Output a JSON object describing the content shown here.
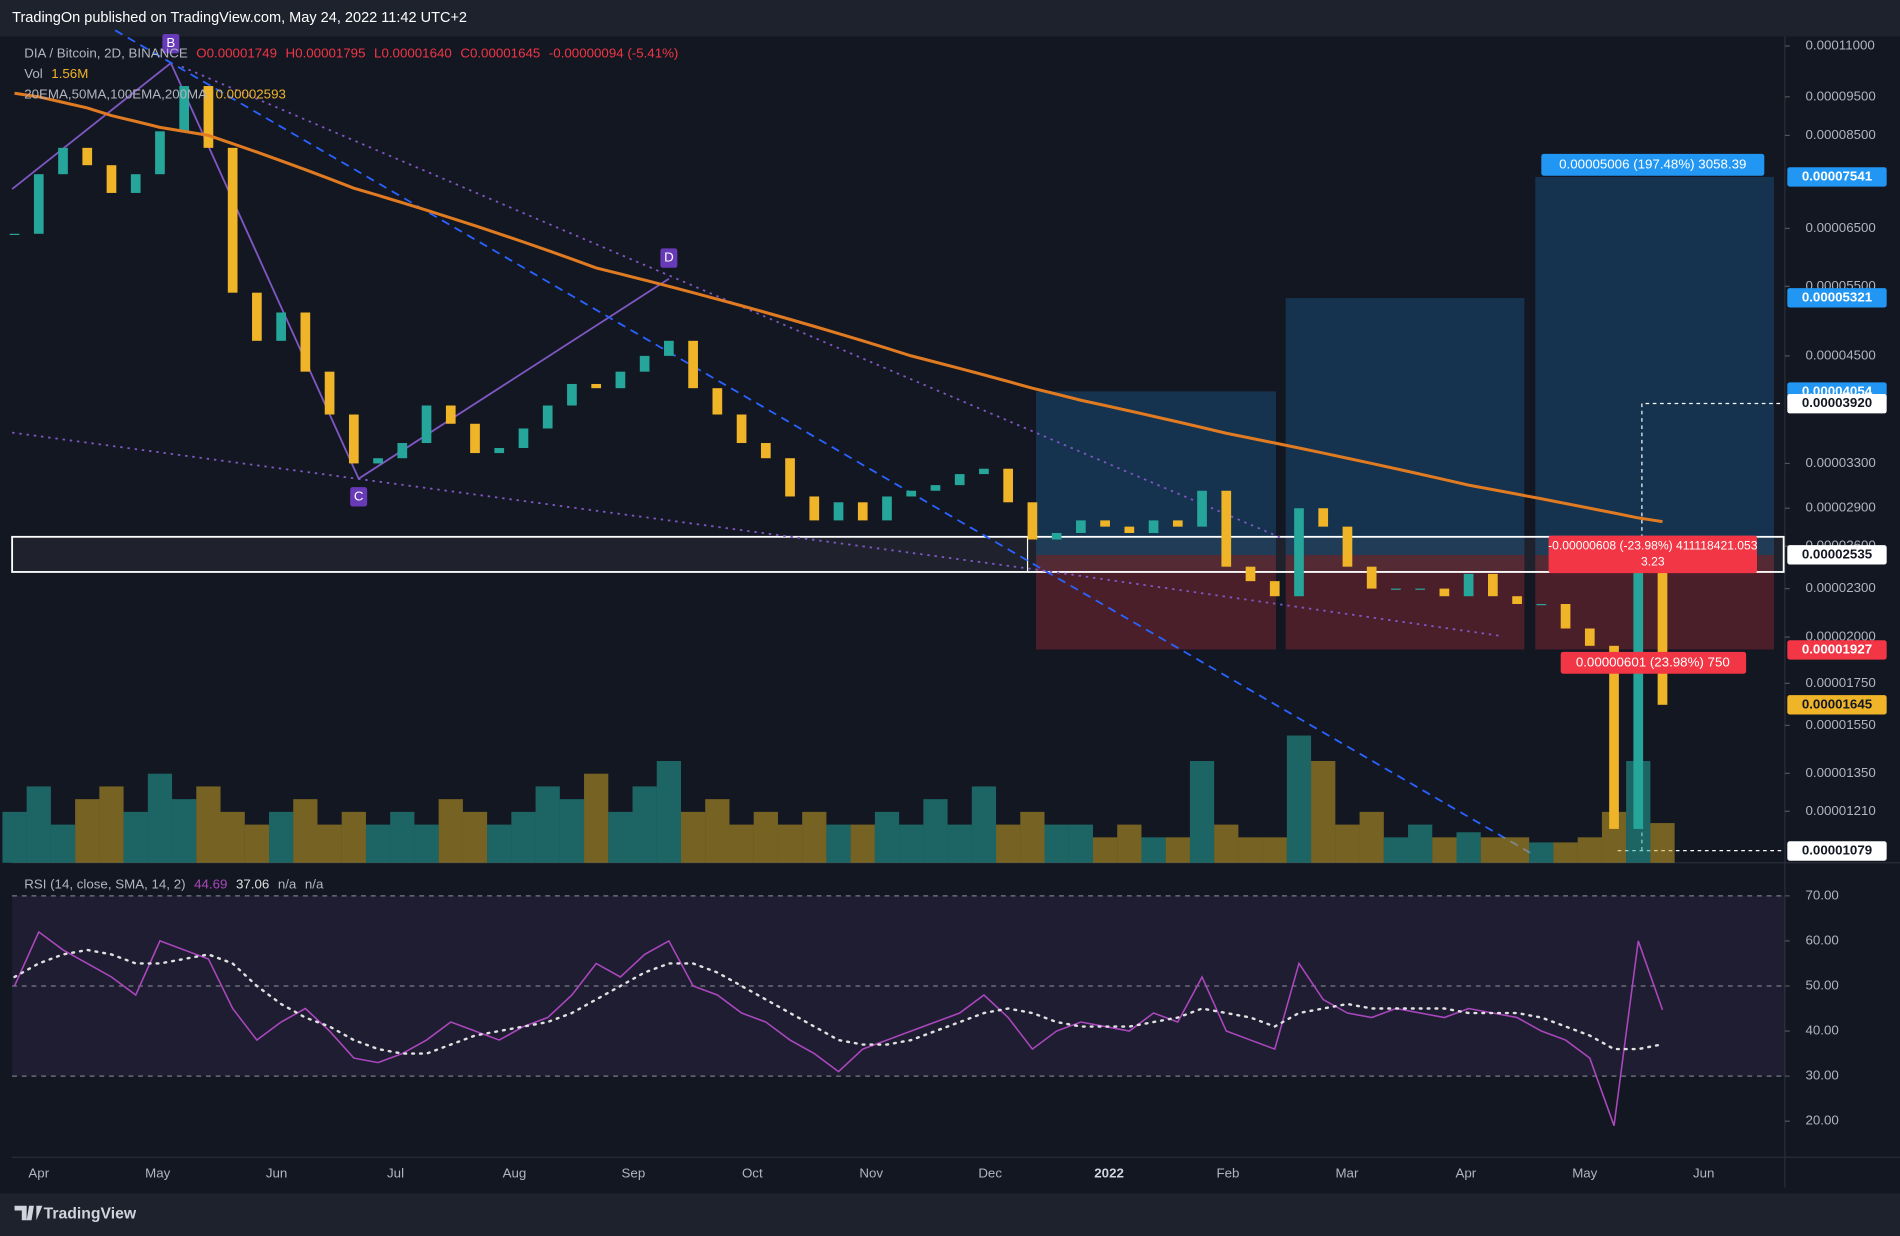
{
  "header": "TradingOn published on TradingView.com, May 24, 2022 11:42 UTC+2",
  "footer": "TradingView",
  "chart_data": [
    {
      "type": "candlestick",
      "title": "DIA / Bitcoin, 2D, BINANCE",
      "ohlc_labels": [
        "O0.00001749",
        "H0.00001795",
        "L0.00001640",
        "C0.00001645",
        "-0.00000094 (-5.41%)"
      ],
      "volume_label": "Vol",
      "volume_value_label": "1.56M",
      "indicator_label": "20EMA,50MA,100EMA,200MA",
      "indicator_value_label": "0.00002593",
      "log_scale": true,
      "ylim": [
        1.043e-05,
        0.0001131
      ],
      "yticks": [
        {
          "value": 0.00011,
          "label": "0.00011000"
        },
        {
          "value": 9.5e-05,
          "label": "0.00009500"
        },
        {
          "value": 8.5e-05,
          "label": "0.00008500"
        },
        {
          "value": 6.5e-05,
          "label": "0.00006500"
        },
        {
          "value": 5.5e-05,
          "label": "0.00005500"
        },
        {
          "value": 4.5e-05,
          "label": "0.00004500"
        },
        {
          "value": 3.3e-05,
          "label": "0.00003300"
        },
        {
          "value": 2.9e-05,
          "label": "0.00002900"
        },
        {
          "value": 2.6e-05,
          "label": "0.00002600"
        },
        {
          "value": 2.3e-05,
          "label": "0.00002300"
        },
        {
          "value": 2e-05,
          "label": "0.00002000"
        },
        {
          "value": 1.75e-05,
          "label": "0.00001750"
        },
        {
          "value": 1.55e-05,
          "label": "0.00001550"
        },
        {
          "value": 1.35e-05,
          "label": "0.00001350"
        },
        {
          "value": 1.21e-05,
          "label": "0.00001210"
        }
      ],
      "x_tick_labels": [
        "Apr",
        "May",
        "Jun",
        "Jul",
        "Aug",
        "Sep",
        "Oct",
        "Nov",
        "Dec",
        "2022",
        "Feb",
        "Mar",
        "Apr",
        "May",
        "Jun"
      ],
      "series": [
        {
          "color_up": "#26a69a",
          "color_down": "#f0b429",
          "values": [
            6.4e-05,
            7.6e-05,
            8.2e-05,
            7.8e-05,
            7.2e-05,
            7.6e-05,
            8.6e-05,
            9.8e-05,
            8.2e-05,
            5.4e-05,
            4.7e-05,
            5.1e-05,
            4.3e-05,
            3.8e-05,
            3.3e-05,
            3.35e-05,
            3.5e-05,
            3.9e-05,
            3.7e-05,
            3.4e-05,
            3.45e-05,
            3.65e-05,
            3.9e-05,
            4.15e-05,
            4.1e-05,
            4.3e-05,
            4.5e-05,
            4.7e-05,
            4.1e-05,
            3.8e-05,
            3.5e-05,
            3.35e-05,
            3e-05,
            2.8e-05,
            2.95e-05,
            2.8e-05,
            3e-05,
            3.05e-05,
            3.1e-05,
            3.2e-05,
            3.25e-05,
            2.95e-05,
            2.65e-05,
            2.7e-05,
            2.8e-05,
            2.75e-05,
            2.7e-05,
            2.8e-05,
            2.75e-05,
            3.05e-05,
            2.45e-05,
            2.35e-05,
            2.25e-05,
            2.9e-05,
            2.75e-05,
            2.45e-05,
            2.3e-05,
            2.3e-05,
            2.3e-05,
            2.25e-05,
            2.4e-05,
            2.25e-05,
            2.2e-05,
            2.2e-05,
            2.05e-05,
            1.95e-05,
            1.15e-05,
            2.6e-05,
            1.645e-05
          ]
        },
        {
          "color": "#e07b22",
          "values": [
            9.6e-05,
            9.5e-05,
            9.35e-05,
            9.2e-05,
            9e-05,
            8.85e-05,
            8.7e-05,
            8.6e-05,
            8.5e-05,
            8.3e-05,
            8.1e-05,
            7.9e-05,
            7.7e-05,
            7.5e-05,
            7.3e-05,
            7.15e-05,
            7e-05,
            6.85e-05,
            6.7e-05,
            6.55e-05,
            6.4e-05,
            6.25e-05,
            6.1e-05,
            5.95e-05,
            5.8e-05,
            5.7e-05,
            5.6e-05,
            5.5e-05,
            5.4e-05,
            5.3e-05,
            5.2e-05,
            5.1e-05,
            5e-05,
            4.9e-05,
            4.8e-05,
            4.7e-05,
            4.6e-05,
            4.5e-05,
            4.42e-05,
            4.34e-05,
            4.26e-05,
            4.18e-05,
            4.1e-05,
            4.03e-05,
            3.96e-05,
            3.9e-05,
            3.84e-05,
            3.78e-05,
            3.72e-05,
            3.66e-05,
            3.6e-05,
            3.55e-05,
            3.5e-05,
            3.45e-05,
            3.4e-05,
            3.35e-05,
            3.3e-05,
            3.25e-05,
            3.2e-05,
            3.15e-05,
            3.1e-05,
            3.06e-05,
            3.02e-05,
            2.98e-05,
            2.94e-05,
            2.9e-05,
            2.86e-05,
            2.82e-05,
            2.79e-05
          ]
        }
      ],
      "volume": {
        "color_up": "#26a69a",
        "color_down": "#c9a227",
        "values": [
          2,
          3,
          1.5,
          2.5,
          3,
          2,
          3.5,
          2.5,
          3,
          2,
          1.5,
          2,
          2.5,
          1.5,
          2,
          1.5,
          2,
          1.5,
          2.5,
          2,
          1.5,
          2,
          3,
          2.5,
          3.5,
          2,
          3,
          4,
          2,
          2.5,
          1.5,
          2,
          1.5,
          2,
          1.5,
          1.5,
          2,
          1.5,
          2.5,
          1.5,
          3,
          1.5,
          2,
          1.5,
          1.5,
          1,
          1.5,
          1,
          1,
          4,
          1.5,
          1,
          1,
          5,
          4,
          1.5,
          2,
          1,
          1.5,
          1,
          1.2,
          1,
          1,
          0.8,
          0.8,
          1,
          2,
          4,
          1.56
        ]
      },
      "price_labels": [
        {
          "value": 7.541e-05,
          "label": "0.00007541",
          "color": "#2196f3"
        },
        {
          "value": 5.321e-05,
          "label": "0.00005321",
          "color": "#2196f3"
        },
        {
          "value": 4.054e-05,
          "label": "0.00004054",
          "color": "#2196f3"
        },
        {
          "value": 3.92e-05,
          "label": "0.00003920",
          "color": "#ffffff"
        },
        {
          "value": 2.535e-05,
          "label": "0.00002535",
          "color": "#ffffff"
        },
        {
          "value": 1.927e-05,
          "label": "0.00001927",
          "color": "#f23645"
        },
        {
          "value": 1.645e-05,
          "label": "0.00001645",
          "color": "#f0b429"
        },
        {
          "value": 1.079e-05,
          "label": "0.00001079",
          "color": "#ffffff"
        }
      ],
      "pattern_labels": [
        "B",
        "C",
        "D"
      ],
      "position_labels": [
        "0.00005006 (197.48%) 3058.39",
        "-0.00000608 (-23.98%) 411118421.053",
        "3.23",
        "0.00000601 (23.98%) 750"
      ]
    },
    {
      "type": "line",
      "title": "RSI (14, close, SMA, 14, 2)",
      "value_labels": [
        "44.69",
        "37.06",
        "n/a",
        "n/a"
      ],
      "ylim": [
        12,
        76
      ],
      "yticks": [
        {
          "value": 70,
          "label": "70.00"
        },
        {
          "value": 60,
          "label": "60.00"
        },
        {
          "value": 50,
          "label": "50.00"
        },
        {
          "value": 40,
          "label": "40.00"
        },
        {
          "value": 30,
          "label": "30.00"
        },
        {
          "value": 20,
          "label": "20.00"
        }
      ],
      "bands": {
        "upper": 70,
        "middle": 50,
        "lower": 30
      },
      "series": [
        {
          "color": "#ab47bc",
          "values": [
            50,
            62,
            58,
            55,
            52,
            48,
            60,
            58,
            56,
            45,
            38,
            42,
            45,
            40,
            34,
            33,
            35,
            38,
            42,
            40,
            38,
            41,
            43,
            48,
            55,
            52,
            57,
            60,
            50,
            48,
            44,
            42,
            38,
            35,
            31,
            36,
            38,
            40,
            42,
            44,
            48,
            43,
            36,
            40,
            42,
            41,
            40,
            44,
            42,
            52,
            40,
            38,
            36,
            55,
            47,
            44,
            43,
            45,
            44,
            43,
            45,
            44,
            43,
            40,
            38,
            34,
            19,
            60,
            44.69
          ]
        },
        {
          "color": "#e0e0e0",
          "values": [
            52,
            55,
            57,
            58,
            57,
            55,
            55,
            56,
            57,
            55,
            50,
            46,
            43,
            41,
            38,
            36,
            35,
            35,
            37,
            39,
            40,
            41,
            42,
            44,
            47,
            50,
            53,
            55,
            55,
            53,
            50,
            47,
            44,
            41,
            38,
            37,
            37,
            38,
            40,
            42,
            44,
            45,
            44,
            42,
            41,
            41,
            41,
            42,
            43,
            45,
            44,
            43,
            41,
            44,
            45,
            46,
            45,
            45,
            45,
            45,
            44,
            44,
            44,
            43,
            41,
            39,
            36,
            36,
            37.06
          ]
        }
      ]
    }
  ]
}
